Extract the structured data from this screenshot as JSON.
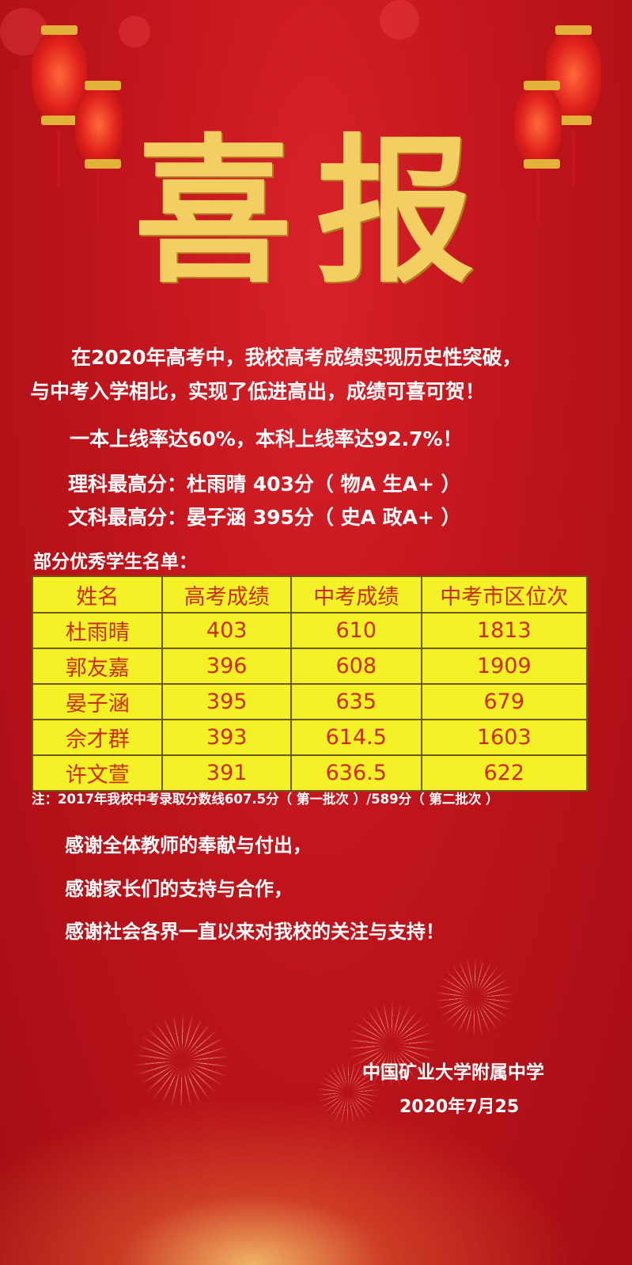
{
  "title": "喜报",
  "intro": {
    "line1": "在2020年高考中，我校高考成绩实现历史性突破，",
    "line2": "与中考入学相比，实现了低进高出，成绩可喜可贺！"
  },
  "rates": "一本上线率达60%，本科上线率达92.7%！",
  "top_science": "理科最高分：杜雨晴 403分（ 物A 生A+ ）",
  "top_arts": "文科最高分：晏子涵 395分（ 史A 政A+ ）",
  "list_heading": "部分优秀学生名单：",
  "table": {
    "headers": [
      "姓名",
      "高考成绩",
      "中考成绩",
      "中考市区位次"
    ],
    "rows": [
      [
        "杜雨晴",
        "403",
        "610",
        "1813"
      ],
      [
        "郭友嘉",
        "396",
        "608",
        "1909"
      ],
      [
        "晏子涵",
        "395",
        "635",
        "679"
      ],
      [
        "佘才群",
        "393",
        "614.5",
        "1603"
      ],
      [
        "许文萱",
        "391",
        "636.5",
        "622"
      ]
    ]
  },
  "note": "注：2017年我校中考录取分数线607.5分（ 第一批次 ）/589分（ 第二批次 ）",
  "thanks": [
    "感谢全体教师的奉献与付出，",
    "感谢家长们的支持与合作，",
    "感谢社会各界一直以来对我校的关注与支持！"
  ],
  "signature": {
    "school": "中国矿业大学附属中学",
    "date": "2020年7月25"
  },
  "colors": {
    "background": "#c0141c",
    "title_gold": "#f3cf63",
    "table_fill": "#f4f227",
    "table_text": "#cf2a12"
  }
}
